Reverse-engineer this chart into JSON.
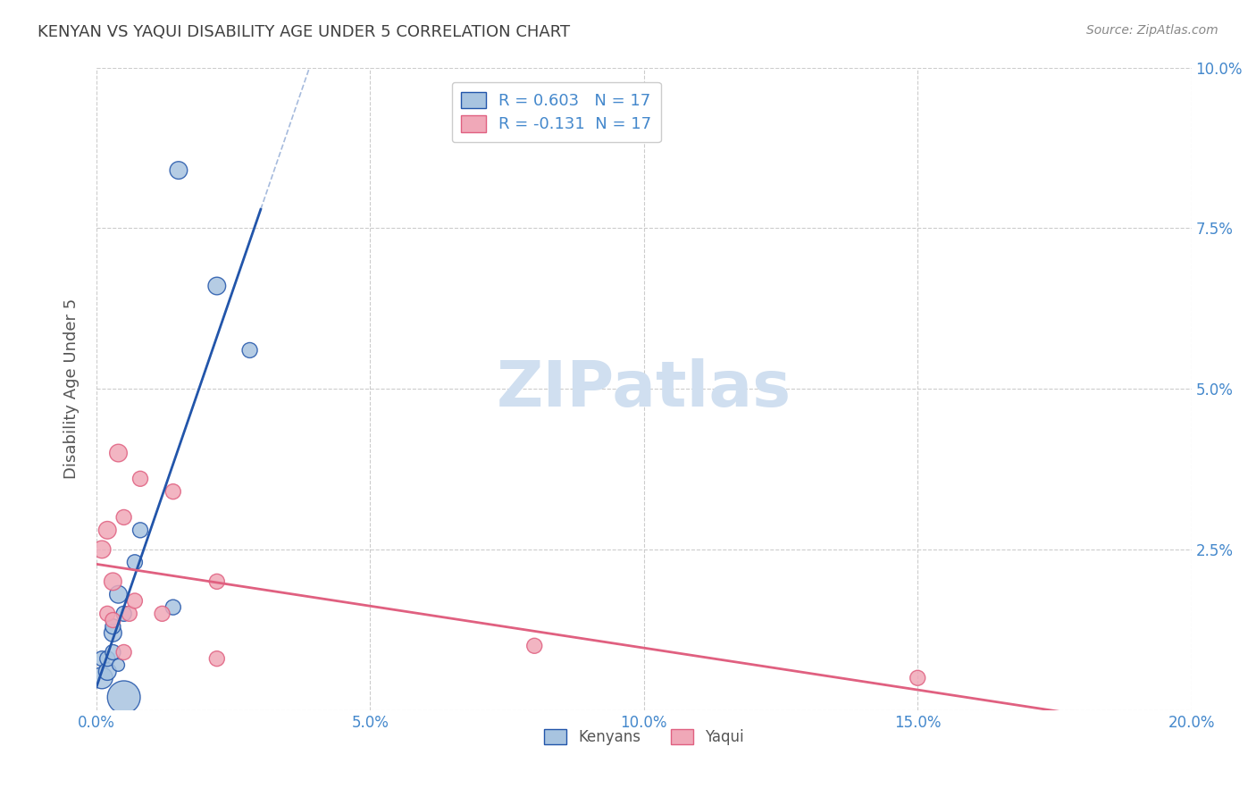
{
  "title": "KENYAN VS YAQUI DISABILITY AGE UNDER 5 CORRELATION CHART",
  "source": "Source: ZipAtlas.com",
  "xlabel": "",
  "ylabel": "Disability Age Under 5",
  "xlim": [
    0.0,
    0.2
  ],
  "ylim": [
    0.0,
    0.1
  ],
  "xticks": [
    0.0,
    0.05,
    0.1,
    0.15,
    0.2
  ],
  "yticks": [
    0.0,
    0.025,
    0.05,
    0.075,
    0.1
  ],
  "xtick_labels": [
    "0.0%",
    "5.0%",
    "10.0%",
    "15.0%",
    "20.0%"
  ],
  "ytick_labels": [
    "",
    "2.5%",
    "5.0%",
    "7.5%",
    "10.0%"
  ],
  "kenyan_R": 0.603,
  "yaqui_R": -0.131,
  "N": 17,
  "kenyan_color": "#a8c4e0",
  "yaqui_color": "#f0a8b8",
  "kenyan_line_color": "#2255aa",
  "yaqui_line_color": "#e06080",
  "background_color": "#ffffff",
  "grid_color": "#cccccc",
  "watermark_color": "#d0dff0",
  "title_color": "#404040",
  "tick_color": "#4488cc",
  "legend_R_color": "#4488cc",
  "kenyan_x": [
    0.001,
    0.001,
    0.002,
    0.002,
    0.003,
    0.003,
    0.003,
    0.004,
    0.004,
    0.005,
    0.005,
    0.007,
    0.008,
    0.014,
    0.015,
    0.022,
    0.028
  ],
  "kenyan_y": [
    0.005,
    0.008,
    0.006,
    0.008,
    0.009,
    0.012,
    0.013,
    0.007,
    0.018,
    0.002,
    0.015,
    0.023,
    0.028,
    0.016,
    0.084,
    0.066,
    0.056
  ],
  "kenyan_size": [
    300,
    150,
    200,
    150,
    150,
    200,
    150,
    100,
    200,
    700,
    150,
    150,
    150,
    150,
    200,
    200,
    150
  ],
  "yaqui_x": [
    0.001,
    0.002,
    0.002,
    0.003,
    0.003,
    0.004,
    0.005,
    0.005,
    0.006,
    0.007,
    0.008,
    0.012,
    0.014,
    0.022,
    0.022,
    0.08,
    0.15
  ],
  "yaqui_y": [
    0.025,
    0.015,
    0.028,
    0.014,
    0.02,
    0.04,
    0.009,
    0.03,
    0.015,
    0.017,
    0.036,
    0.015,
    0.034,
    0.008,
    0.02,
    0.01,
    0.005
  ],
  "yaqui_size": [
    200,
    150,
    200,
    150,
    200,
    200,
    150,
    150,
    150,
    150,
    150,
    150,
    150,
    150,
    150,
    150,
    150
  ]
}
